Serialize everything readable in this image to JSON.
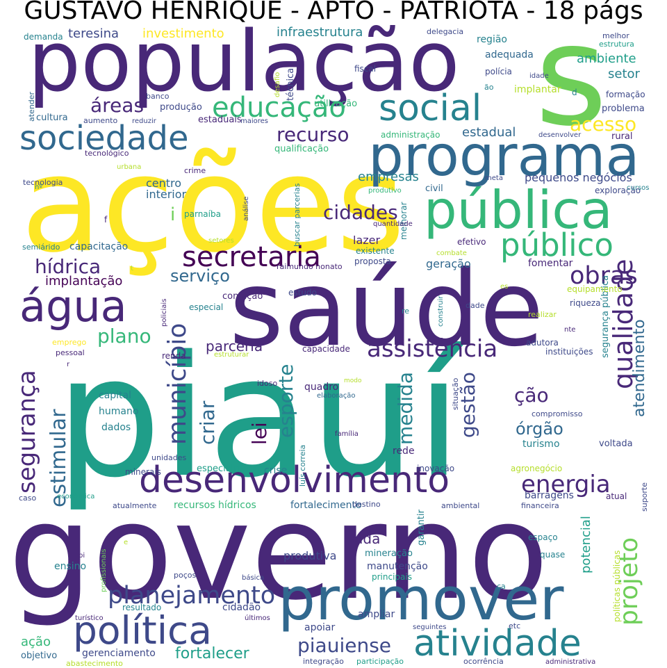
{
  "title": "GUSTAVO HENRIQUE - APTO - PATRIOTA - 18 págs",
  "colors": {
    "dark_purple": "#440154",
    "indigo": "#482878",
    "blue_violet": "#3e4989",
    "slate_blue": "#31688e",
    "teal": "#26828e",
    "sea_green": "#1f9e89",
    "green": "#35b779",
    "lime": "#6ece58",
    "yellow_green": "#b5de2b",
    "yellow": "#fde725"
  },
  "words": [
    "piauí",
    "governo",
    "ações",
    "saúde",
    "população",
    "s",
    "programa",
    "promover",
    "pública",
    "desenvolvimento",
    "política",
    "atividade",
    "sociedade",
    "social",
    "água",
    "público",
    "secretaria",
    "educação",
    "planejamento",
    "obras",
    "assistência",
    "segurança",
    "qualidade",
    "município",
    "energia",
    "recurso",
    "acesso",
    "áreas",
    "projeto",
    "estimular",
    "hídrica",
    "cidades",
    "plano",
    "lei",
    "esporte",
    "criar",
    "gestão",
    "medida",
    "piauiense",
    "fortalecer",
    "atendimento",
    "ção",
    "órgão",
    "serviço",
    "parceria",
    "vida",
    "produtiva",
    "teresina",
    "investimento",
    "infraestrutura",
    "empresas",
    "implantação",
    "pequenos negócios",
    "ambiente",
    "setor",
    "estadual",
    "geração",
    "centro",
    "interior",
    "i",
    "lazer",
    "adequada",
    "região",
    "segurança pública",
    "potencial",
    "capacitação",
    "fomentar",
    "rede",
    "quadro",
    "capital",
    "humano",
    "dados",
    "turismo",
    "voltada",
    "crise",
    "manutenção",
    "principais",
    "ampliar",
    "apoiar",
    "cidadão",
    "resultado",
    "ensino",
    "barragens",
    "atual",
    "especialmente",
    "recursos hídricos",
    "fortalecimento",
    "gerenciamento",
    "objetivo",
    "abastecimento",
    "ação",
    "unidades",
    "minerais",
    "inovação",
    "agronegócio",
    "mineração",
    "garantir",
    "implantar",
    "formação",
    "problema",
    "rural",
    "exploração",
    "cursos",
    "meta",
    "civil",
    "melhorar",
    "qualificação",
    "fiscal",
    "polícia",
    "idade",
    "ão",
    "d",
    "melhor",
    "estrutura",
    "delegacia",
    "técnica",
    "desafio",
    "utilização",
    "produção",
    "banco",
    "atender",
    "cultura",
    "aumento",
    "reduzir",
    "estaduais",
    "maiores",
    "tecnológico",
    "urbana",
    "crime",
    "tecnologia",
    "nº",
    "parnaíba",
    "análise",
    "buscar parcerias",
    "produtivo",
    "quantidade",
    "setores",
    "semiárido",
    "raimundo nonato",
    "existente",
    "proposta",
    "efetivo",
    "combate",
    "construir",
    "condição",
    "estudo",
    "especial",
    "policiais",
    "es",
    "equipamento",
    "riqueza",
    "dade",
    "realizar",
    "re",
    "nte",
    "emprego",
    "pessoal",
    "renda",
    "capacidade",
    "estruturar",
    "instituições",
    "adutora",
    "idoso",
    "modo",
    "elaboração",
    "situação",
    "compromisso",
    "família",
    "luís correia",
    "caso",
    "econômica",
    "atualmente",
    "destino",
    "ambiental",
    "financeira",
    "suporte",
    "espaço",
    "quase",
    "poços",
    "básica",
    "profissionais",
    "pi",
    "ca",
    "etc",
    "políticas públicas",
    "turístico",
    "últimos",
    "seguintes",
    "integração",
    "participação",
    "ocorrência",
    "administrativa",
    "demanda",
    "administração",
    "desenvolver",
    "t",
    "f",
    "r",
    "e"
  ]
}
